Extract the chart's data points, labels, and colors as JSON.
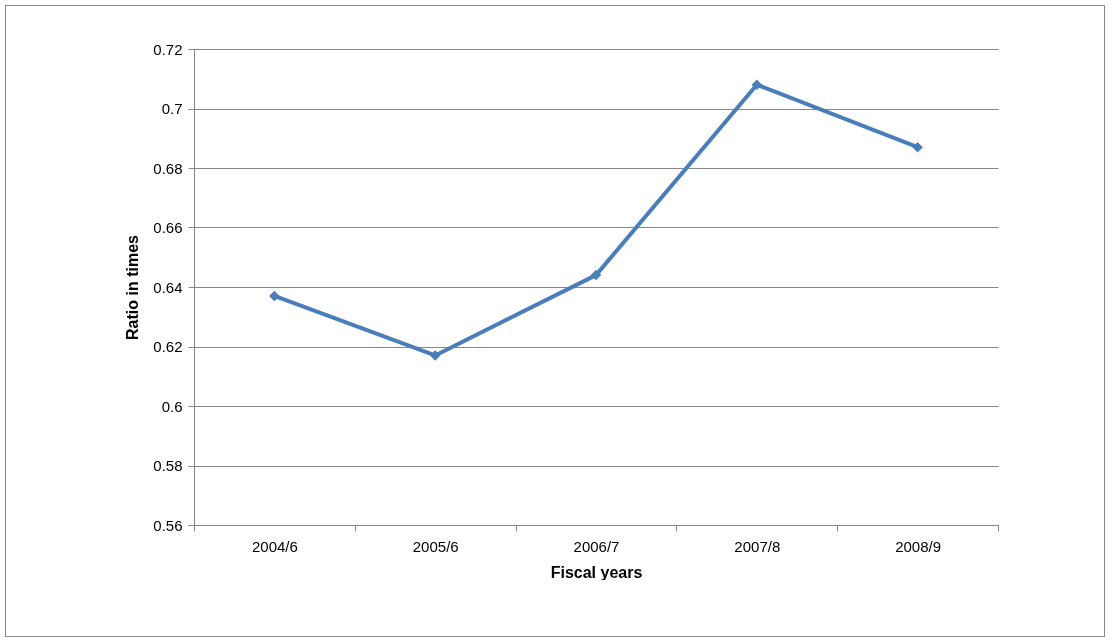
{
  "chart_data": {
    "type": "line",
    "xlabel": "Fiscal years",
    "ylabel": "Ratio in times",
    "categories": [
      "2004/6",
      "2005/6",
      "2006/7",
      "2007/8",
      "2008/9"
    ],
    "series": [
      {
        "color": "#4a7ebb",
        "values": [
          0.637,
          0.617,
          0.644,
          0.708,
          0.687
        ]
      }
    ],
    "ylim": [
      0.56,
      0.72
    ],
    "yticks": [
      0.56,
      0.58,
      0.6,
      0.62,
      0.64,
      0.66,
      0.68,
      0.7,
      0.72
    ],
    "grid": "y",
    "marker": "diamond",
    "line_style": "solid"
  }
}
